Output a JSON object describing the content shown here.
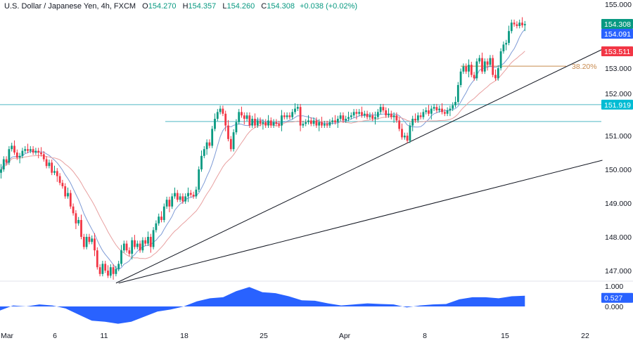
{
  "header": {
    "symbol": "U.S. Dollar / Japanese Yen, 4h, FXCM",
    "open_label": "O",
    "open": "154.270",
    "high_label": "H",
    "high": "154.357",
    "low_label": "L",
    "low": "154.260",
    "close_label": "C",
    "close": "154.308",
    "change": "+0.038 (+0.02%)"
  },
  "chart_data": {
    "type": "candlestick",
    "interval": "4h",
    "colors": {
      "up": "#089981",
      "down": "#f23645",
      "ma_fast": "#7e9bd6",
      "ma_slow": "#e8a0a0",
      "oscillator": "#2962ff",
      "level": "#4fb8c4",
      "fib": "#c88a4e",
      "trend": "#131722"
    },
    "price_axis": {
      "range": [
        146.6,
        155.0
      ],
      "ticks": [
        "155.000",
        "153.000",
        "152.000",
        "151.000",
        "150.000",
        "149.000",
        "148.000",
        "147.000"
      ]
    },
    "x_axis": {
      "ticks": [
        "Mar",
        "6",
        "11",
        "18",
        "25",
        "Apr",
        "8",
        "15",
        "22"
      ]
    },
    "closes": [
      150.0,
      150.3,
      150.2,
      150.6,
      150.7,
      150.5,
      150.35,
      150.4,
      150.55,
      150.6,
      150.55,
      150.6,
      150.5,
      150.55,
      150.5,
      150.45,
      150.3,
      150.1,
      150.2,
      149.9,
      149.95,
      149.8,
      149.6,
      149.5,
      149.2,
      149.3,
      148.9,
      148.7,
      148.4,
      148.5,
      148.0,
      147.7,
      148.0,
      147.85,
      147.95,
      147.6,
      147.1,
      146.9,
      147.2,
      147.0,
      146.85,
      147.1,
      146.9,
      147.05,
      147.2,
      147.6,
      147.8,
      147.6,
      147.5,
      147.9,
      147.7,
      147.8,
      147.6,
      147.9,
      147.8,
      148.0,
      147.7,
      148.2,
      148.4,
      148.6,
      148.5,
      148.9,
      149.1,
      148.9,
      149.2,
      149.3,
      149.1,
      149.2,
      149.05,
      149.2,
      149.3,
      149.25,
      149.2,
      149.4,
      150.0,
      150.4,
      150.6,
      150.8,
      150.7,
      151.2,
      151.5,
      151.7,
      151.8,
      151.65,
      151.3,
      150.9,
      150.6,
      151.1,
      151.4,
      151.7,
      151.6,
      151.5,
      151.6,
      151.3,
      151.5,
      151.3,
      151.45,
      151.35,
      151.4,
      151.3,
      151.45,
      151.3,
      151.4,
      151.35,
      151.3,
      151.6,
      151.55,
      151.6,
      151.55,
      151.7,
      151.8,
      151.85,
      151.3,
      151.35,
      151.4,
      151.45,
      151.35,
      151.45,
      151.3,
      151.4,
      151.3,
      151.35,
      151.3,
      151.4,
      151.45,
      151.4,
      151.5,
      151.6,
      151.45,
      151.5,
      151.55,
      151.6,
      151.7,
      151.65,
      151.7,
      151.6,
      151.65,
      151.55,
      151.6,
      151.5,
      151.55,
      151.7,
      151.85,
      151.75,
      151.6,
      151.65,
      151.55,
      151.6,
      151.45,
      151.2,
      150.95,
      151.0,
      150.85,
      151.3,
      151.5,
      151.45,
      151.6,
      151.55,
      151.7,
      151.75,
      151.65,
      151.8,
      151.85,
      151.75,
      151.8,
      151.7,
      151.65,
      151.75,
      151.8,
      151.9,
      152.0,
      152.5,
      152.9,
      153.05,
      152.9,
      153.1,
      152.8,
      152.7,
      153.2,
      153.3,
      152.9,
      153.2,
      153.1,
      153.3,
      152.8,
      152.7,
      153.0,
      153.5,
      153.7,
      153.75,
      154.1,
      154.35,
      154.3,
      154.25,
      154.35,
      154.27,
      154.308
    ],
    "moving_averages": [
      {
        "period": 9
      },
      {
        "period": 20
      }
    ],
    "levels": [
      {
        "price": 151.919,
        "label": "151.919",
        "color": "#00bcd4"
      },
      {
        "price": 151.42
      }
    ],
    "fib_level": {
      "price": 153.06,
      "label": "38.20%"
    },
    "trendlines": [
      {
        "from": {
          "candle": 43,
          "price": 146.63
        },
        "to": {
          "candle": 225,
          "price": 153.56
        }
      },
      {
        "from": {
          "candle": 44,
          "price": 146.63
        },
        "to": {
          "candle": 225,
          "price": 150.27
        }
      }
    ],
    "price_tags": [
      {
        "value": "154.308",
        "price": 154.308,
        "color": "#089981"
      },
      {
        "value": "154.091",
        "price": 154.091,
        "color": "#2962ff"
      },
      {
        "value": "153.511",
        "price": 153.511,
        "color": "#f23645"
      }
    ],
    "oscillator": {
      "range": [
        -1,
        1
      ],
      "ticks": [
        "1.000",
        "0.000"
      ],
      "current": "0.527",
      "values": [
        -0.2,
        0.05,
        0.0,
        0.1,
        0.05,
        -0.1,
        -0.4,
        -0.7,
        -0.75,
        -0.85,
        -0.75,
        -0.5,
        -0.25,
        -0.15,
        0.0,
        0.25,
        0.4,
        0.45,
        0.75,
        0.95,
        0.7,
        0.65,
        0.5,
        0.3,
        0.28,
        0.15,
        0.05,
        0.1,
        0.15,
        0.12,
        0.1,
        -0.05,
        0.05,
        0.1,
        0.12,
        0.35,
        0.45,
        0.45,
        0.4,
        0.5,
        0.527
      ]
    }
  }
}
